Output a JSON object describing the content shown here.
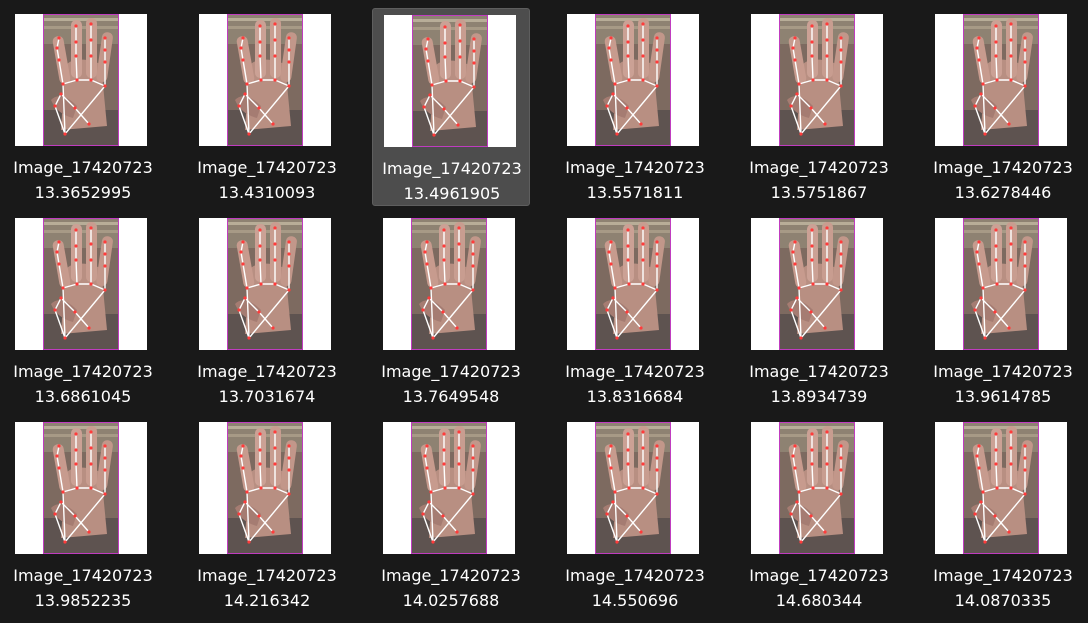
{
  "window": {
    "background": "#191919",
    "selected_background": "#4d4d4d"
  },
  "files": [
    {
      "name_line1": "Image_17420723",
      "name_line2": "13.3652995",
      "selected": false,
      "icon": "image-thumbnail-icon"
    },
    {
      "name_line1": "Image_17420723",
      "name_line2": "13.4310093",
      "selected": false,
      "icon": "image-thumbnail-icon"
    },
    {
      "name_line1": "Image_17420723",
      "name_line2": "13.4961905",
      "selected": true,
      "icon": "image-thumbnail-icon"
    },
    {
      "name_line1": "Image_17420723",
      "name_line2": "13.5571811",
      "selected": false,
      "icon": "image-thumbnail-icon"
    },
    {
      "name_line1": "Image_17420723",
      "name_line2": "13.5751867",
      "selected": false,
      "icon": "image-thumbnail-icon"
    },
    {
      "name_line1": "Image_17420723",
      "name_line2": "13.6278446",
      "selected": false,
      "icon": "image-thumbnail-icon"
    },
    {
      "name_line1": "Image_17420723",
      "name_line2": "13.6861045",
      "selected": false,
      "icon": "image-thumbnail-icon"
    },
    {
      "name_line1": "Image_17420723",
      "name_line2": "13.7031674",
      "selected": false,
      "icon": "image-thumbnail-icon"
    },
    {
      "name_line1": "Image_17420723",
      "name_line2": "13.7649548",
      "selected": false,
      "icon": "image-thumbnail-icon"
    },
    {
      "name_line1": "Image_17420723",
      "name_line2": "13.8316684",
      "selected": false,
      "icon": "image-thumbnail-icon"
    },
    {
      "name_line1": "Image_17420723",
      "name_line2": "13.8934739",
      "selected": false,
      "icon": "image-thumbnail-icon"
    },
    {
      "name_line1": "Image_17420723",
      "name_line2": "13.9614785",
      "selected": false,
      "icon": "image-thumbnail-icon"
    },
    {
      "name_line1": "Image_17420723",
      "name_line2": "13.9852235",
      "selected": false,
      "icon": "image-thumbnail-icon"
    },
    {
      "name_line1": "Image_17420723",
      "name_line2": "14.216342",
      "selected": false,
      "icon": "image-thumbnail-icon"
    },
    {
      "name_line1": "Image_17420723",
      "name_line2": "14.0257688",
      "selected": false,
      "icon": "image-thumbnail-icon"
    },
    {
      "name_line1": "Image_17420723",
      "name_line2": "14.550696",
      "selected": false,
      "icon": "image-thumbnail-icon"
    },
    {
      "name_line1": "Image_17420723",
      "name_line2": "14.680344",
      "selected": false,
      "icon": "image-thumbnail-icon"
    },
    {
      "name_line1": "Image_17420723",
      "name_line2": "14.0870335",
      "selected": false,
      "icon": "image-thumbnail-icon"
    }
  ]
}
